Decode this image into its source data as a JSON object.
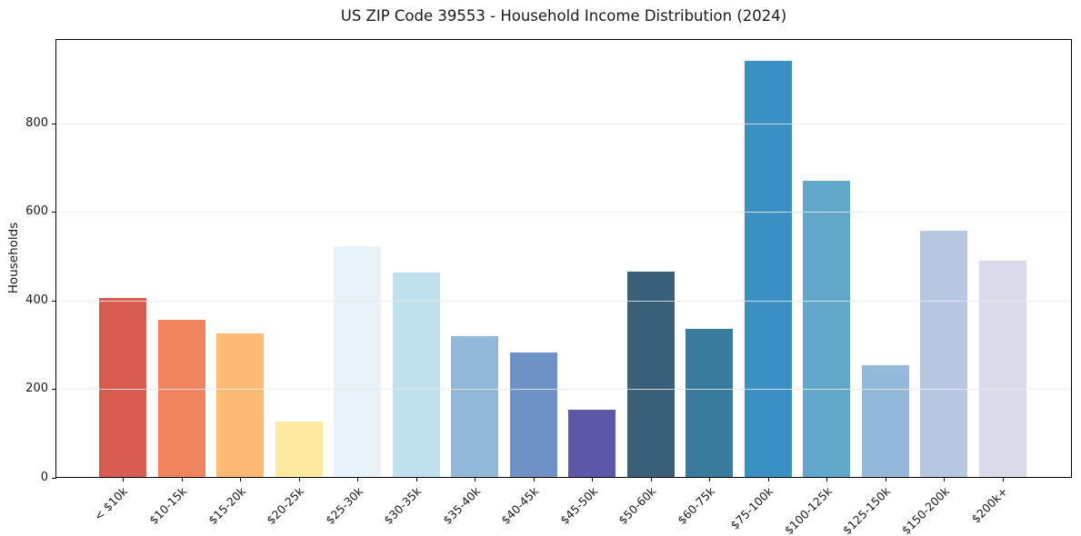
{
  "page": {
    "background": "#ffffff"
  },
  "chart_data": {
    "type": "bar",
    "title": "US ZIP Code 39553 - Household Income Distribution (2024)",
    "xlabel": "",
    "ylabel": "Households",
    "categories": [
      "< $10k",
      "$10-15k",
      "$15-20k",
      "$20-25k",
      "$25-30k",
      "$30-35k",
      "$35-40k",
      "$40-45k",
      "$45-50k",
      "$50-60k",
      "$60-75k",
      "$75-100k",
      "$100-125k",
      "$125-150k",
      "$150-200k",
      "$200k+"
    ],
    "values": [
      404,
      356,
      325,
      125,
      522,
      462,
      318,
      282,
      153,
      465,
      334,
      940,
      669,
      252,
      556,
      488
    ],
    "bar_colors": [
      "#d85c52",
      "#f0845e",
      "#fcba75",
      "#fdeaa0",
      "#e7f3f8",
      "#bfe0ec",
      "#8fb9d6",
      "#6e92c5",
      "#5b58a8",
      "#395f79",
      "#387b9d",
      "#3a8fc3",
      "#61a7c9",
      "#92bad8",
      "#b7c7e2",
      "#d8dae8"
    ],
    "ylim": [
      0,
      990
    ],
    "yticks": [
      0,
      200,
      400,
      600,
      800
    ],
    "grid": "horizontal",
    "grid_color": "#e9e9e9",
    "spine_color": "#000000",
    "text_color": "#1a1a1a",
    "legend_position": "none",
    "x_tick_rotation_deg": 45
  }
}
